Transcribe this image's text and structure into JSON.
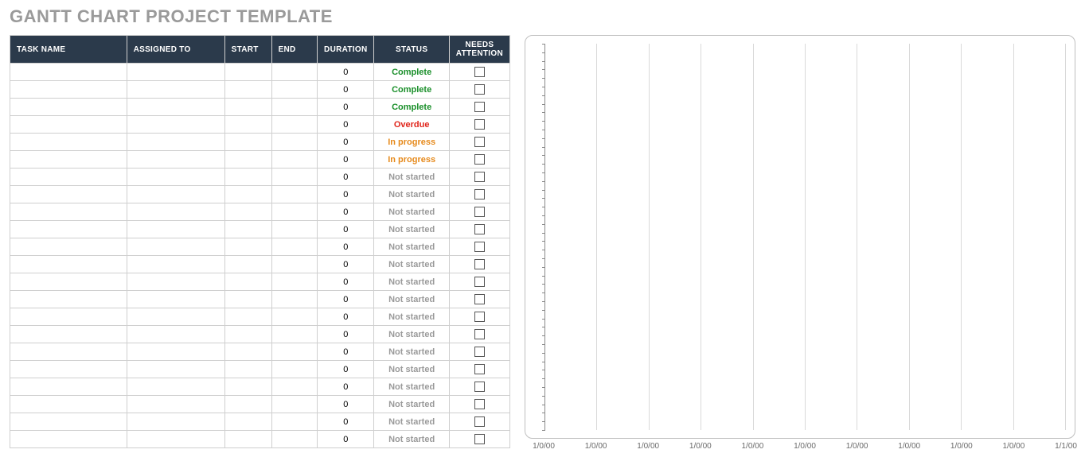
{
  "title": "GANTT CHART PROJECT TEMPLATE",
  "table": {
    "columns": [
      {
        "key": "task_name",
        "label": "TASK NAME",
        "class": "col-taskname",
        "centerHeader": false
      },
      {
        "key": "assigned",
        "label": "ASSIGNED TO",
        "class": "col-assigned",
        "centerHeader": false
      },
      {
        "key": "start",
        "label": "START",
        "class": "col-start",
        "centerHeader": false
      },
      {
        "key": "end",
        "label": "END",
        "class": "col-end",
        "centerHeader": false
      },
      {
        "key": "duration",
        "label": "DURATION",
        "class": "col-duration",
        "centerHeader": true
      },
      {
        "key": "status",
        "label": "STATUS",
        "class": "col-status",
        "centerHeader": true
      },
      {
        "key": "attention",
        "label": "NEEDS ATTENTION",
        "class": "col-attn",
        "centerHeader": true
      }
    ],
    "status_colors": {
      "Complete": "#1a8f2a",
      "Overdue": "#e0261c",
      "In progress": "#e68a1c",
      "Not started": "#9a9a9a"
    },
    "rows": [
      {
        "task_name": "",
        "assigned": "",
        "start": "",
        "end": "",
        "duration": "0",
        "status": "Complete",
        "attention": false
      },
      {
        "task_name": "",
        "assigned": "",
        "start": "",
        "end": "",
        "duration": "0",
        "status": "Complete",
        "attention": false
      },
      {
        "task_name": "",
        "assigned": "",
        "start": "",
        "end": "",
        "duration": "0",
        "status": "Complete",
        "attention": false
      },
      {
        "task_name": "",
        "assigned": "",
        "start": "",
        "end": "",
        "duration": "0",
        "status": "Overdue",
        "attention": false
      },
      {
        "task_name": "",
        "assigned": "",
        "start": "",
        "end": "",
        "duration": "0",
        "status": "In progress",
        "attention": false
      },
      {
        "task_name": "",
        "assigned": "",
        "start": "",
        "end": "",
        "duration": "0",
        "status": "In progress",
        "attention": false
      },
      {
        "task_name": "",
        "assigned": "",
        "start": "",
        "end": "",
        "duration": "0",
        "status": "Not started",
        "attention": false
      },
      {
        "task_name": "",
        "assigned": "",
        "start": "",
        "end": "",
        "duration": "0",
        "status": "Not started",
        "attention": false
      },
      {
        "task_name": "",
        "assigned": "",
        "start": "",
        "end": "",
        "duration": "0",
        "status": "Not started",
        "attention": false
      },
      {
        "task_name": "",
        "assigned": "",
        "start": "",
        "end": "",
        "duration": "0",
        "status": "Not started",
        "attention": false
      },
      {
        "task_name": "",
        "assigned": "",
        "start": "",
        "end": "",
        "duration": "0",
        "status": "Not started",
        "attention": false
      },
      {
        "task_name": "",
        "assigned": "",
        "start": "",
        "end": "",
        "duration": "0",
        "status": "Not started",
        "attention": false
      },
      {
        "task_name": "",
        "assigned": "",
        "start": "",
        "end": "",
        "duration": "0",
        "status": "Not started",
        "attention": false
      },
      {
        "task_name": "",
        "assigned": "",
        "start": "",
        "end": "",
        "duration": "0",
        "status": "Not started",
        "attention": false
      },
      {
        "task_name": "",
        "assigned": "",
        "start": "",
        "end": "",
        "duration": "0",
        "status": "Not started",
        "attention": false
      },
      {
        "task_name": "",
        "assigned": "",
        "start": "",
        "end": "",
        "duration": "0",
        "status": "Not started",
        "attention": false
      },
      {
        "task_name": "",
        "assigned": "",
        "start": "",
        "end": "",
        "duration": "0",
        "status": "Not started",
        "attention": false
      },
      {
        "task_name": "",
        "assigned": "",
        "start": "",
        "end": "",
        "duration": "0",
        "status": "Not started",
        "attention": false
      },
      {
        "task_name": "",
        "assigned": "",
        "start": "",
        "end": "",
        "duration": "0",
        "status": "Not started",
        "attention": false
      },
      {
        "task_name": "",
        "assigned": "",
        "start": "",
        "end": "",
        "duration": "0",
        "status": "Not started",
        "attention": false
      },
      {
        "task_name": "",
        "assigned": "",
        "start": "",
        "end": "",
        "duration": "0",
        "status": "Not started",
        "attention": false
      },
      {
        "task_name": "",
        "assigned": "",
        "start": "",
        "end": "",
        "duration": "0",
        "status": "Not started",
        "attention": false
      }
    ]
  },
  "chart": {
    "type": "gantt-timeline",
    "background_color": "#ffffff",
    "border_color": "#bfbfbf",
    "grid_color": "#d9d9d9",
    "axis_color": "#8a8a8a",
    "label_color": "#6a6a6a",
    "label_fontsize": 10,
    "x_positions_pct": [
      0,
      10,
      20,
      30,
      40,
      50,
      60,
      70,
      80,
      90,
      100
    ],
    "x_labels": [
      "1/0/00",
      "1/0/00",
      "1/0/00",
      "1/0/00",
      "1/0/00",
      "1/0/00",
      "1/0/00",
      "1/0/00",
      "1/0/00",
      "1/0/00",
      "1/1/00"
    ],
    "y_tick_count": 45
  }
}
